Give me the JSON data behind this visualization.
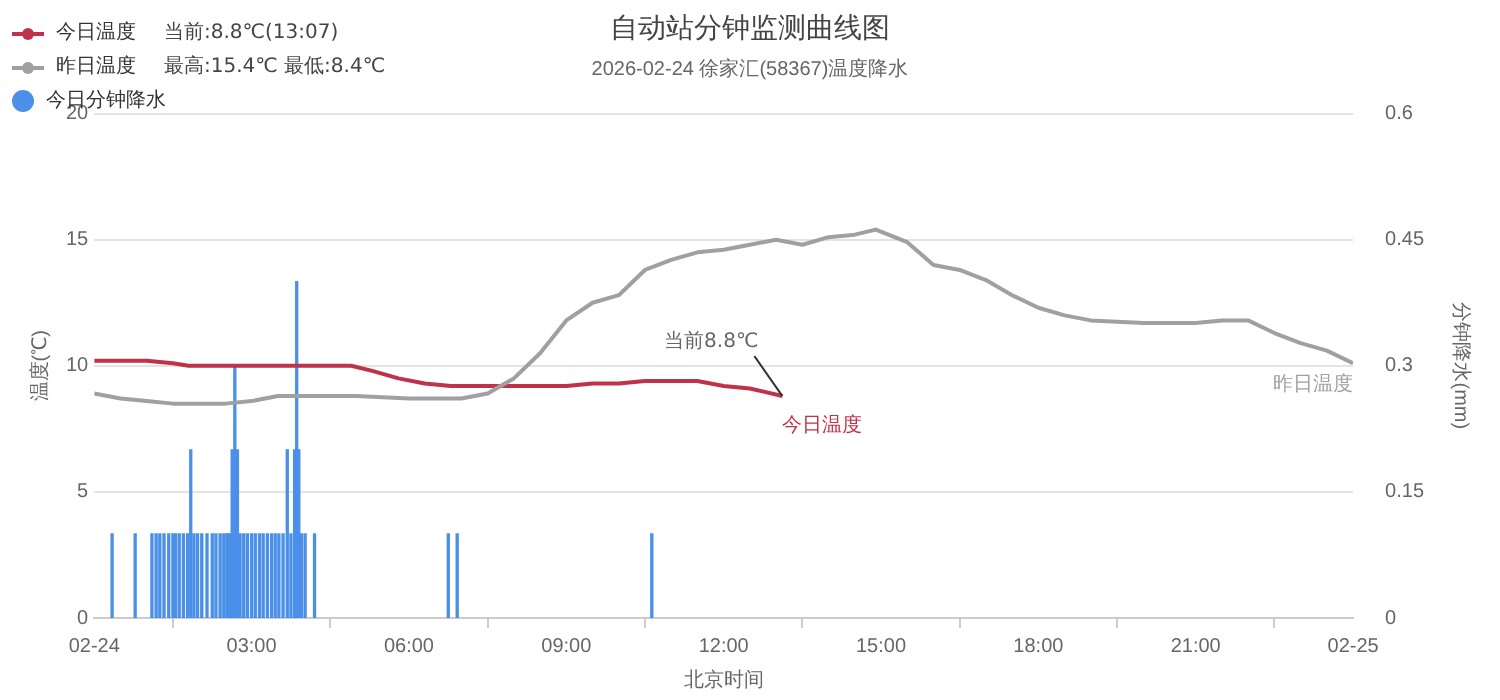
{
  "chart_data": {
    "type": "line",
    "title": "自动站分钟监测曲线图",
    "subtitle": "2026-02-24 徐家汇(58367)温度降水",
    "xlabel": "北京时间",
    "ylabel": "温度(℃)",
    "y2label": "分钟降水(mm)",
    "xlim": [
      0,
      24
    ],
    "xticks": [
      {
        "value": 0,
        "label": "02-24"
      },
      {
        "value": 3,
        "label": "03:00"
      },
      {
        "value": 6,
        "label": "06:00"
      },
      {
        "value": 9,
        "label": "09:00"
      },
      {
        "value": 12,
        "label": "12:00"
      },
      {
        "value": 15,
        "label": "15:00"
      },
      {
        "value": 18,
        "label": "18:00"
      },
      {
        "value": 21,
        "label": "21:00"
      },
      {
        "value": 24,
        "label": "02-25"
      }
    ],
    "ylim": [
      0,
      20
    ],
    "yticks": [
      0,
      5,
      10,
      15,
      20
    ],
    "y2lim": [
      0,
      0.6
    ],
    "y2ticks": [
      0,
      0.15,
      0.3,
      0.45,
      0.6
    ],
    "grid": "y",
    "legend": "top left",
    "marker": "none",
    "line_style": "solid",
    "annotations": [
      "当前:8.8℃(13:07)",
      "最高:15.4℃ 最低:8.4℃",
      {
        "text": "当前8.8℃",
        "x": 13.12,
        "y": 8.8
      }
    ],
    "series": [
      {
        "name": "今日分钟降水",
        "type": "bar",
        "axis": "y2",
        "color": "#4a8fe8",
        "x": [
          0.34,
          0.78,
          1.1,
          1.18,
          1.25,
          1.33,
          1.42,
          1.5,
          1.55,
          1.62,
          1.7,
          1.78,
          1.84,
          1.9,
          1.97,
          2.05,
          2.15,
          2.25,
          2.32,
          2.4,
          2.47,
          2.53,
          2.58,
          2.63,
          2.68,
          2.73,
          2.78,
          2.85,
          2.92,
          3.0,
          3.07,
          3.15,
          3.22,
          3.3,
          3.38,
          3.45,
          3.52,
          3.6,
          3.68,
          3.75,
          3.82,
          3.86,
          3.9,
          3.95,
          4.02,
          4.2,
          6.75,
          6.92,
          10.63
        ],
        "values": [
          0.1,
          0.1,
          0.1,
          0.1,
          0.1,
          0.1,
          0.1,
          0.1,
          0.1,
          0.1,
          0.1,
          0.1,
          0.2,
          0.1,
          0.1,
          0.1,
          0.1,
          0.1,
          0.1,
          0.1,
          0.1,
          0.1,
          0.1,
          0.2,
          0.3,
          0.2,
          0.1,
          0.1,
          0.1,
          0.1,
          0.1,
          0.1,
          0.1,
          0.1,
          0.1,
          0.1,
          0.1,
          0.1,
          0.2,
          0.1,
          0.2,
          0.4,
          0.2,
          0.1,
          0.1,
          0.1,
          0.1,
          0.1,
          0.1
        ]
      },
      {
        "name": "昨日温度",
        "color": "#a0a0a0",
        "x": [
          0,
          0.5,
          1,
          1.5,
          2,
          2.5,
          3,
          3.5,
          4,
          5,
          6,
          7,
          7.5,
          8,
          8.5,
          9,
          9.5,
          10,
          10.5,
          11,
          11.5,
          12,
          12.5,
          13,
          13.5,
          14,
          14.5,
          14.9,
          15.5,
          16,
          16.5,
          17,
          17.5,
          18,
          18.5,
          19,
          20,
          21,
          21.5,
          22,
          22.5,
          23,
          23.5,
          24
        ],
        "values": [
          8.9,
          8.7,
          8.6,
          8.5,
          8.5,
          8.5,
          8.6,
          8.8,
          8.8,
          8.8,
          8.7,
          8.7,
          8.9,
          9.5,
          10.5,
          11.8,
          12.5,
          12.8,
          13.8,
          14.2,
          14.5,
          14.6,
          14.8,
          15.0,
          14.8,
          15.1,
          15.2,
          15.4,
          14.9,
          14.0,
          13.8,
          13.4,
          12.8,
          12.3,
          12.0,
          11.8,
          11.7,
          11.7,
          11.8,
          11.8,
          11.3,
          10.9,
          10.6,
          10.1
        ]
      },
      {
        "name": "今日温度",
        "color": "#c0324a",
        "x": [
          0,
          1,
          1.5,
          1.8,
          2.5,
          3,
          4,
          4.5,
          4.9,
          5.3,
          5.8,
          6.3,
          6.8,
          7.3,
          8,
          9,
          9.5,
          10,
          10.5,
          11,
          11.5,
          12,
          12.5,
          13.12
        ],
        "values": [
          10.2,
          10.2,
          10.1,
          10.0,
          10.0,
          10.0,
          10.0,
          10.0,
          10.0,
          9.8,
          9.5,
          9.3,
          9.2,
          9.2,
          9.2,
          9.2,
          9.3,
          9.3,
          9.4,
          9.4,
          9.4,
          9.2,
          9.1,
          8.8
        ]
      }
    ]
  }
}
